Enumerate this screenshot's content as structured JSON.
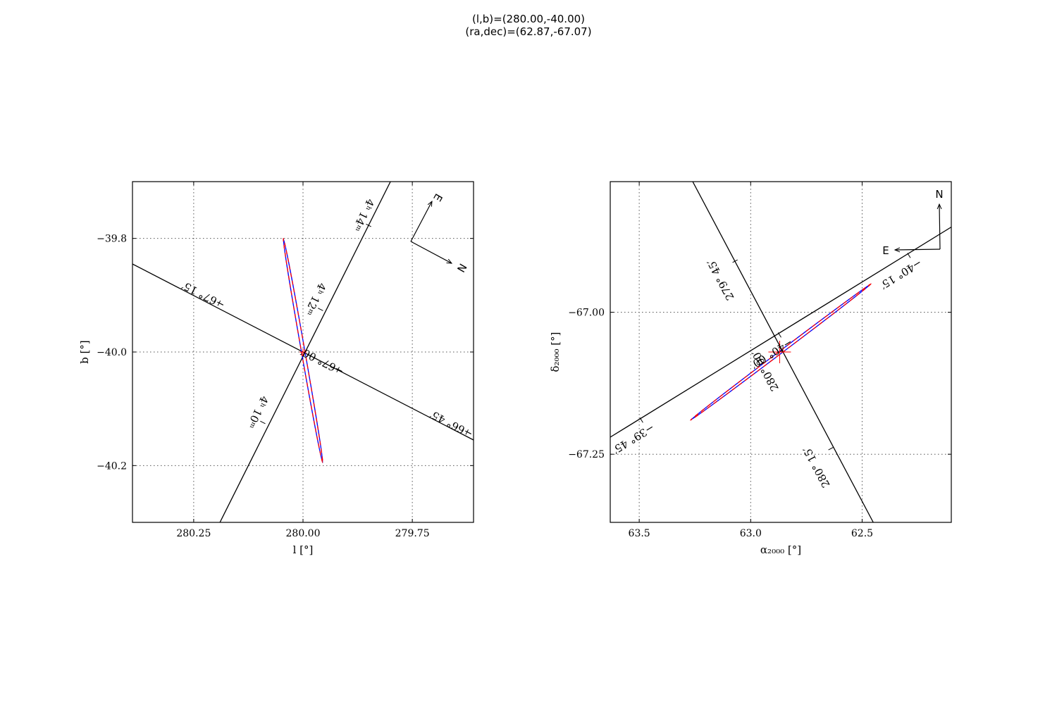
{
  "figure": {
    "title_line1": "(l,b)=(280.00,-40.00)",
    "title_line2": "(ra,dec)=(62.87,-67.07)"
  },
  "chart_data": [
    {
      "type": "scatter",
      "panel": "left",
      "xlabel": "l [°]",
      "ylabel": "b [°]",
      "xlim": [
        280.39,
        279.61
      ],
      "ylim": [
        -40.3,
        -39.7
      ],
      "x_reversed": true,
      "x_ticks": [
        280.25,
        280.0,
        279.75
      ],
      "x_tick_labels": [
        "280.25",
        "280.00",
        "279.75"
      ],
      "y_ticks": [
        -39.8,
        -40.0,
        -40.2
      ],
      "y_tick_labels": [
        "−39.8",
        "−40.0",
        "−40.2"
      ],
      "grid": true,
      "center_marker": [
        280.0,
        -40.0
      ],
      "ellipse": {
        "center": [
          280.0,
          -40.0
        ],
        "endpoints": [
          [
            280.045,
            -39.8
          ],
          [
            279.955,
            -40.195
          ]
        ],
        "minor_halfwidth_deg": 0.004,
        "series": [
          {
            "name": "",
            "color": "#0000ff",
            "style": "solid"
          },
          {
            "name": "",
            "color": "#ff0000",
            "style": "dashed"
          }
        ]
      },
      "coordinate_lines": [
        {
          "kind": "ra",
          "points": [
            [
              280.19,
              -40.3
            ],
            [
              279.8,
              -39.7
            ]
          ]
        },
        {
          "kind": "dec",
          "points": [
            [
              280.39,
              -39.845
            ],
            [
              279.61,
              -40.155
            ]
          ]
        }
      ],
      "coordinate_ticks": [
        {
          "kind": "ra",
          "at": [
            280.092,
            -40.124
          ],
          "text": "4ʰ 10ᵐ"
        },
        {
          "kind": "ra",
          "at": [
            279.96,
            -39.925
          ],
          "text": "4ʰ 12ᵐ"
        },
        {
          "kind": "ra",
          "at": [
            279.85,
            -39.777
          ],
          "text": "4ʰ 14ᵐ"
        },
        {
          "kind": "dec",
          "at": [
            280.192,
            -39.914
          ],
          "text": "−67° 15′"
        },
        {
          "kind": "dec",
          "at": [
            279.92,
            -40.031
          ],
          "text": "−67° 00′"
        },
        {
          "kind": "dec",
          "at": [
            279.625,
            -40.141
          ],
          "text": "−66° 45′"
        }
      ],
      "compass": {
        "east_label": "E",
        "north_label": "N",
        "east_angle_deg": -60,
        "north_angle_deg": -27
      }
    },
    {
      "type": "scatter",
      "panel": "right",
      "xlabel": "α₂₀₀₀ [°]",
      "ylabel": "δ₂₀₀₀ [°]",
      "xlim": [
        63.63,
        62.1
      ],
      "ylim": [
        -67.37,
        -66.77
      ],
      "x_reversed": true,
      "x_ticks": [
        63.5,
        63.0,
        62.5
      ],
      "x_tick_labels": [
        "63.5",
        "63.0",
        "62.5"
      ],
      "y_ticks": [
        -67.0,
        -67.25
      ],
      "y_tick_labels": [
        "−67.00",
        "−67.25"
      ],
      "grid": true,
      "center_marker": [
        62.87,
        -67.07
      ],
      "ellipse": {
        "center": [
          62.87,
          -67.07
        ],
        "endpoints": [
          [
            63.27,
            -67.19
          ],
          [
            62.46,
            -66.95
          ]
        ],
        "minor_halfwidth_deg": 0.006,
        "series": [
          {
            "name": "",
            "color": "#0000ff",
            "style": "solid"
          },
          {
            "name": "",
            "color": "#ff0000",
            "style": "dashed"
          }
        ]
      },
      "coordinate_lines": [
        {
          "kind": "l",
          "points": [
            [
              63.26,
              -66.77
            ],
            [
              62.45,
              -67.37
            ]
          ]
        },
        {
          "kind": "b",
          "points": [
            [
              63.63,
              -67.22
            ],
            [
              62.1,
              -66.85
            ]
          ]
        }
      ],
      "coordinate_ticks": [
        {
          "kind": "l",
          "at": [
            63.07,
            -66.91
          ],
          "text": "279° 45′"
        },
        {
          "kind": "l",
          "at": [
            62.87,
            -67.07
          ],
          "text": "280° 00′"
        },
        {
          "kind": "l",
          "at": [
            62.64,
            -67.24
          ],
          "text": "280° 15′"
        },
        {
          "kind": "b",
          "at": [
            63.49,
            -67.19
          ],
          "text": "−39° 45′"
        },
        {
          "kind": "b",
          "at": [
            62.87,
            -67.04
          ],
          "text": "−40° 00′"
        },
        {
          "kind": "b",
          "at": [
            62.29,
            -66.9
          ],
          "text": "−40° 15′"
        }
      ],
      "compass": {
        "east_label": "E",
        "north_label": "N",
        "east_angle_deg": 180,
        "north_angle_deg": -90
      }
    }
  ]
}
